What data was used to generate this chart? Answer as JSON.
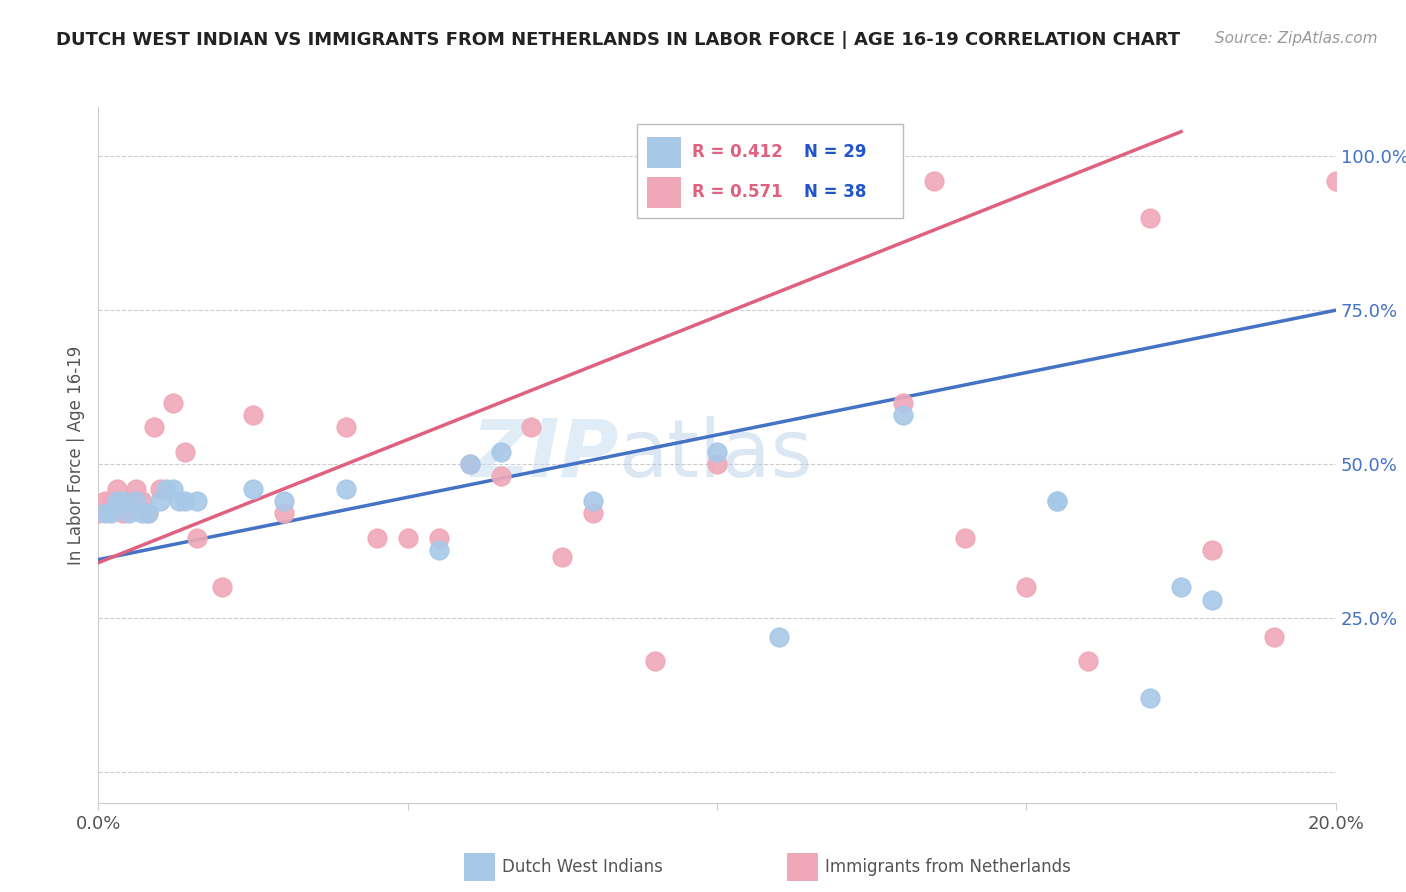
{
  "title": "DUTCH WEST INDIAN VS IMMIGRANTS FROM NETHERLANDS IN LABOR FORCE | AGE 16-19 CORRELATION CHART",
  "source": "Source: ZipAtlas.com",
  "ylabel": "In Labor Force | Age 16-19",
  "x_min": 0.0,
  "x_max": 0.2,
  "y_min": -0.05,
  "y_max": 1.08,
  "x_ticks": [
    0.0,
    0.05,
    0.1,
    0.15,
    0.2
  ],
  "x_tick_labels": [
    "0.0%",
    "",
    "",
    "",
    "20.0%"
  ],
  "y_ticks": [
    0.0,
    0.25,
    0.5,
    0.75,
    1.0
  ],
  "y_tick_labels": [
    "",
    "25.0%",
    "50.0%",
    "75.0%",
    "100.0%"
  ],
  "blue_color": "#a8c8e8",
  "pink_color": "#f0a8b8",
  "blue_line_color": "#4472c4",
  "pink_line_color": "#e06080",
  "watermark_text": "ZIP",
  "watermark_text2": "atlas",
  "blue_points_x": [
    0.001,
    0.002,
    0.003,
    0.004,
    0.005,
    0.006,
    0.007,
    0.008,
    0.01,
    0.011,
    0.012,
    0.013,
    0.014,
    0.016,
    0.025,
    0.03,
    0.04,
    0.055,
    0.06,
    0.065,
    0.08,
    0.1,
    0.11,
    0.13,
    0.155,
    0.155,
    0.17,
    0.175,
    0.18
  ],
  "blue_points_y": [
    0.42,
    0.42,
    0.44,
    0.44,
    0.42,
    0.44,
    0.42,
    0.42,
    0.44,
    0.46,
    0.46,
    0.44,
    0.44,
    0.44,
    0.46,
    0.44,
    0.46,
    0.36,
    0.5,
    0.52,
    0.44,
    0.52,
    0.22,
    0.58,
    0.44,
    0.44,
    0.12,
    0.3,
    0.28
  ],
  "pink_points_x": [
    0.0,
    0.001,
    0.002,
    0.003,
    0.004,
    0.005,
    0.006,
    0.007,
    0.008,
    0.009,
    0.01,
    0.012,
    0.014,
    0.016,
    0.025,
    0.03,
    0.04,
    0.05,
    0.06,
    0.065,
    0.07,
    0.08,
    0.09,
    0.1,
    0.12,
    0.13,
    0.135,
    0.14,
    0.15,
    0.16,
    0.17,
    0.18,
    0.19,
    0.2,
    0.075,
    0.055,
    0.045,
    0.02
  ],
  "pink_points_y": [
    0.42,
    0.44,
    0.44,
    0.46,
    0.42,
    0.44,
    0.46,
    0.44,
    0.42,
    0.56,
    0.46,
    0.6,
    0.52,
    0.38,
    0.58,
    0.42,
    0.56,
    0.38,
    0.5,
    0.48,
    0.56,
    0.42,
    0.18,
    0.5,
    0.96,
    0.6,
    0.96,
    0.38,
    0.3,
    0.18,
    0.9,
    0.36,
    0.22,
    0.96,
    0.35,
    0.38,
    0.38,
    0.3
  ],
  "blue_label": "Dutch West Indians",
  "pink_label": "Immigrants from Netherlands",
  "background_color": "#ffffff",
  "grid_color": "#cccccc",
  "blue_line_x0": 0.0,
  "blue_line_x1": 0.2,
  "blue_line_y0": 0.345,
  "blue_line_y1": 0.75,
  "pink_line_x0": 0.0,
  "pink_line_x1": 0.175,
  "pink_line_y0": 0.34,
  "pink_line_y1": 1.04
}
